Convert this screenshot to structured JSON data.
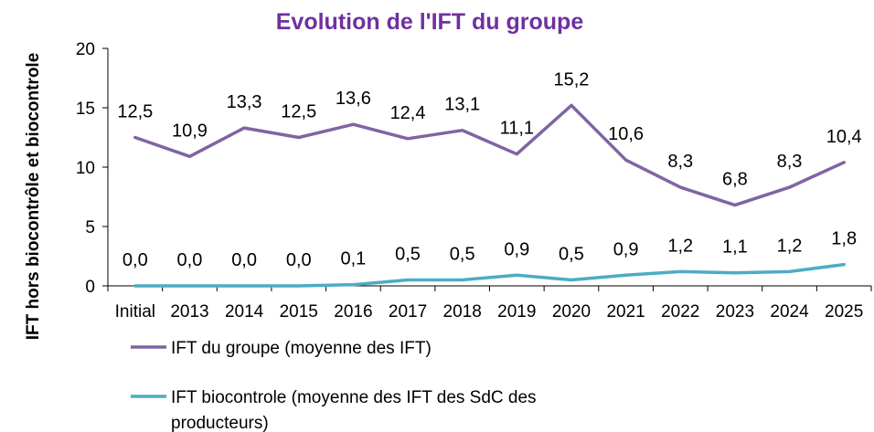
{
  "chart_data": {
    "type": "line",
    "title": "Evolution de l'IFT du groupe",
    "xlabel": "",
    "ylabel": "IFT  hors biocontrôle et biocontrole",
    "categories": [
      "Initial",
      "2013",
      "2014",
      "2015",
      "2016",
      "2017",
      "2018",
      "2019",
      "2020",
      "2021",
      "2022",
      "2023",
      "2024",
      "2025"
    ],
    "yticks": [
      "0",
      "5",
      "10",
      "15",
      "20"
    ],
    "ylim": [
      0,
      20
    ],
    "grid": false,
    "legend_position": "bottom-left",
    "series": [
      {
        "name": "IFT du groupe (moyenne des IFT)",
        "color": "#8064a2",
        "values": [
          12.5,
          10.9,
          13.3,
          12.5,
          13.6,
          12.4,
          13.1,
          11.1,
          15.2,
          10.6,
          8.3,
          6.8,
          8.3,
          10.4
        ],
        "labels": [
          "12,5",
          "10,9",
          "13,3",
          "12,5",
          "13,6",
          "12,4",
          "13,1",
          "11,1",
          "15,2",
          "10,6",
          "8,3",
          "6,8",
          "8,3",
          "10,4"
        ]
      },
      {
        "name": "IFT biocontrole (moyenne des IFT des SdC des producteurs)",
        "name_lines": [
          "IFT biocontrole (moyenne des IFT des SdC des",
          "producteurs)"
        ],
        "color": "#4bacc6",
        "values": [
          0.0,
          0.0,
          0.0,
          0.0,
          0.1,
          0.5,
          0.5,
          0.9,
          0.5,
          0.9,
          1.2,
          1.1,
          1.2,
          1.8
        ],
        "labels": [
          "0,0",
          "0,0",
          "0,0",
          "0,0",
          "0,1",
          "0,5",
          "0,5",
          "0,9",
          "0,5",
          "0,9",
          "1,2",
          "1,1",
          "1,2",
          "1,8"
        ]
      }
    ],
    "title_color": "#7030a0"
  }
}
